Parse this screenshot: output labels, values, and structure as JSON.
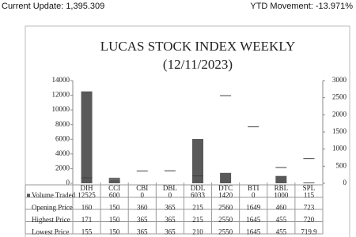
{
  "header": {
    "current_update": "Current Update: 1,395.309",
    "ytd_movement": "YTD Movement: -13.971%"
  },
  "chart_data": {
    "type": "volume-stock",
    "title": "LUCAS STOCK INDEX WEEKLY",
    "subtitle": "(12/11/2023)",
    "categories": [
      "DIH",
      "CCI",
      "CBI",
      "DBL",
      "DDL",
      "DTC",
      "BTI",
      "RBL",
      "SPL"
    ],
    "series": [
      {
        "name": "Volume Traded",
        "color": "#595959",
        "values": [
          12525,
          600,
          0,
          0,
          6033,
          1420,
          0,
          1000,
          115
        ]
      },
      {
        "name": "Opening Price",
        "color": "#404040",
        "axis": "y2",
        "values": [
          160,
          150,
          360,
          365,
          215,
          2560,
          1649,
          460,
          723
        ]
      },
      {
        "name": "Highest Price",
        "color": "#404040",
        "axis": "y2",
        "values": [
          171,
          150,
          365,
          365,
          215,
          2550,
          1645,
          455,
          720
        ]
      },
      {
        "name": "Lowest Price",
        "color": "#404040",
        "axis": "y2",
        "values": [
          155,
          150,
          365,
          365,
          210,
          2550,
          1645,
          455,
          719.9
        ]
      }
    ],
    "ylim": [
      0,
      14000
    ],
    "yticks": [
      0,
      2000,
      4000,
      6000,
      8000,
      10000,
      12000,
      14000
    ],
    "y2lim": [
      0,
      3000
    ],
    "y2ticks": [
      0,
      500,
      1000,
      1500,
      2000,
      2500,
      3000
    ]
  }
}
